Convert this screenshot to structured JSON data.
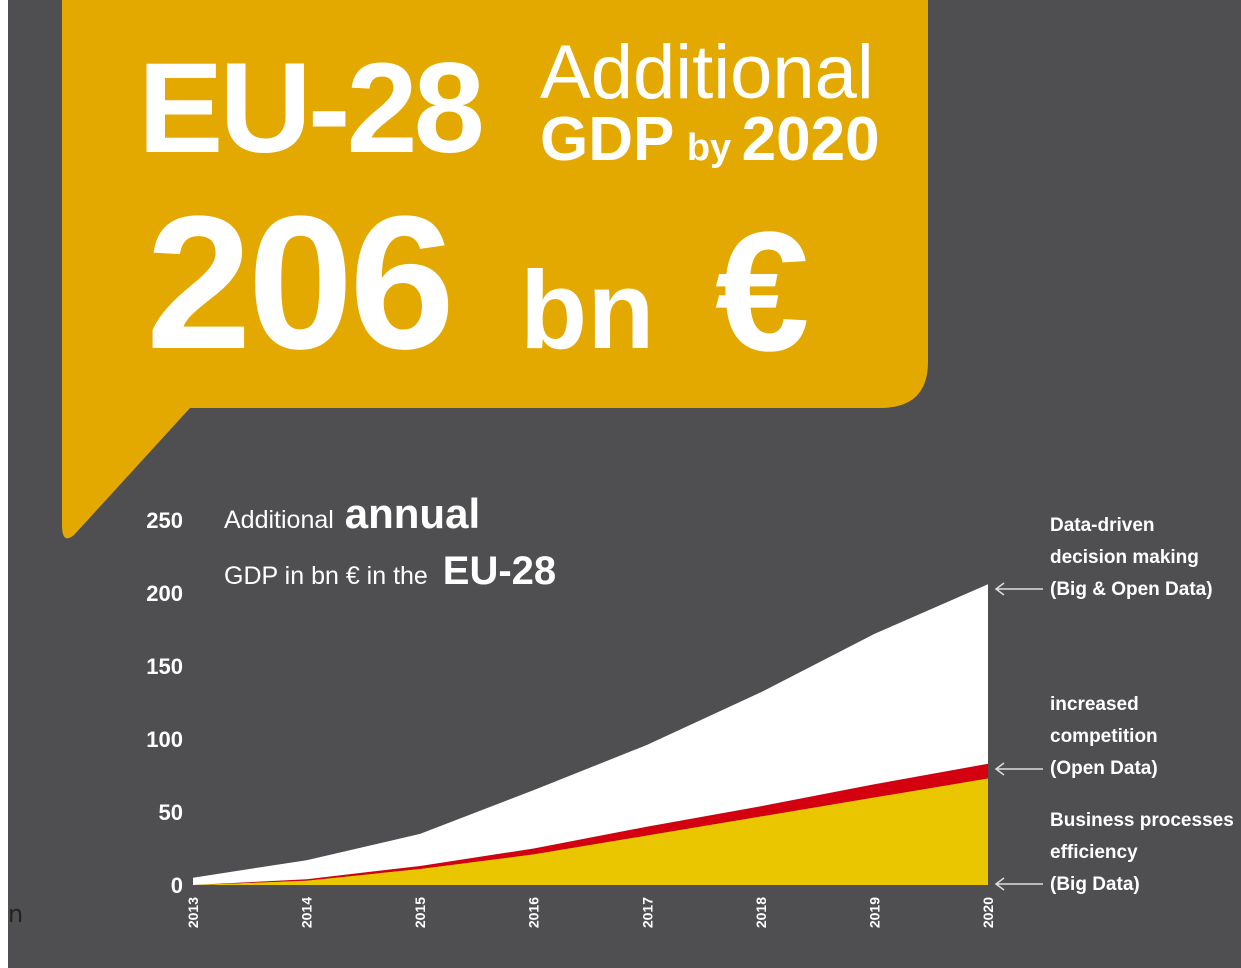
{
  "headline": {
    "region": "EU-28",
    "line1": "Additional",
    "line2_a": "GDP",
    "line2_b": "by",
    "line2_c": "2020",
    "amount": "206",
    "unit": "bn",
    "currency": "€"
  },
  "stray_text": "n",
  "colors": {
    "background": "#4f4e50",
    "callout": "#e4a900",
    "data_driven": "#ffffff",
    "competition": "#d40010",
    "efficiency": "#e9c600"
  },
  "chart_data": {
    "type": "area",
    "stacked": true,
    "title": {
      "part1": "Additional",
      "part2": "annual",
      "part3": "GDP in bn € in the",
      "part4": "EU-28"
    },
    "x": [
      "2013",
      "2014",
      "2015",
      "2016",
      "2017",
      "2018",
      "2019",
      "2020"
    ],
    "y_ticks": [
      "0",
      "50",
      "100",
      "150",
      "200",
      "250"
    ],
    "ylim": [
      0,
      250
    ],
    "grid": false,
    "series": [
      {
        "name": "Business processes efficiency (Big Data)",
        "label_lines": [
          "Business processes",
          "efficiency",
          "(Big Data)"
        ],
        "color": "#e9c600",
        "values": [
          0,
          3,
          11,
          21,
          34,
          47,
          60,
          73
        ]
      },
      {
        "name": "increased competition (Open Data)",
        "label_lines": [
          "increased",
          "competition",
          "(Open Data)"
        ],
        "color": "#d40010",
        "values": [
          0,
          1,
          2,
          4,
          6,
          7,
          9,
          10
        ]
      },
      {
        "name": "Data-driven decision making (Big & Open Data)",
        "label_lines": [
          "Data-driven",
          "decision making",
          "(Big & Open Data)"
        ],
        "color": "#ffffff",
        "values": [
          5,
          13,
          22,
          40,
          56,
          78,
          103,
          123
        ]
      }
    ],
    "totals": [
      5,
      17,
      35,
      65,
      96,
      132,
      172,
      206
    ],
    "legend_position": "right"
  }
}
